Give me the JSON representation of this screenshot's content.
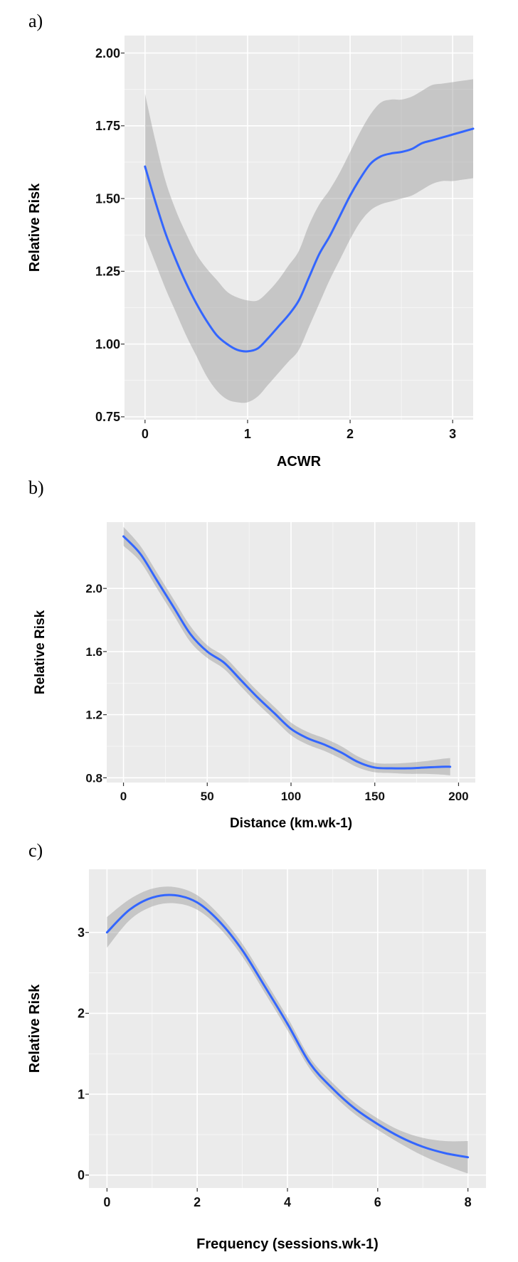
{
  "figure": {
    "panels": [
      {
        "label": "a)"
      },
      {
        "label": "b)"
      },
      {
        "label": "c)"
      }
    ]
  },
  "chart_data": [
    {
      "type": "line",
      "xlabel": "ACWR",
      "ylabel": "Relative Risk",
      "xlim": [
        -0.2,
        3.2
      ],
      "ylim": [
        0.74,
        2.06
      ],
      "x_ticks": [
        0,
        1,
        2,
        3
      ],
      "y_ticks": [
        0.75,
        1.0,
        1.25,
        1.5,
        1.75,
        2.0
      ],
      "y_tick_labels": [
        "0.75",
        "1.00",
        "1.25",
        "1.50",
        "1.75",
        "2.00"
      ],
      "grid": true,
      "series": [
        {
          "x": [
            0,
            0.1,
            0.2,
            0.3,
            0.4,
            0.5,
            0.6,
            0.7,
            0.8,
            0.9,
            1.0,
            1.1,
            1.2,
            1.3,
            1.4,
            1.5,
            1.6,
            1.7,
            1.8,
            1.9,
            2.0,
            2.1,
            2.2,
            2.3,
            2.4,
            2.5,
            2.6,
            2.7,
            2.8,
            2.9,
            3.0,
            3.1,
            3.2
          ],
          "y": [
            1.61,
            1.49,
            1.38,
            1.29,
            1.21,
            1.14,
            1.08,
            1.03,
            1.0,
            0.98,
            0.975,
            0.985,
            1.02,
            1.06,
            1.1,
            1.15,
            1.23,
            1.31,
            1.37,
            1.44,
            1.51,
            1.57,
            1.62,
            1.645,
            1.655,
            1.66,
            1.67,
            1.69,
            1.7,
            1.71,
            1.72,
            1.73,
            1.74
          ],
          "lower": [
            1.37,
            1.28,
            1.19,
            1.11,
            1.03,
            0.96,
            0.89,
            0.84,
            0.81,
            0.8,
            0.8,
            0.82,
            0.86,
            0.9,
            0.94,
            0.98,
            1.06,
            1.14,
            1.22,
            1.29,
            1.36,
            1.42,
            1.46,
            1.48,
            1.49,
            1.5,
            1.51,
            1.53,
            1.55,
            1.56,
            1.56,
            1.565,
            1.57
          ],
          "upper": [
            1.86,
            1.7,
            1.56,
            1.46,
            1.38,
            1.31,
            1.26,
            1.22,
            1.18,
            1.16,
            1.15,
            1.15,
            1.18,
            1.22,
            1.27,
            1.32,
            1.41,
            1.48,
            1.53,
            1.59,
            1.66,
            1.73,
            1.79,
            1.83,
            1.84,
            1.84,
            1.85,
            1.87,
            1.89,
            1.895,
            1.9,
            1.905,
            1.91
          ]
        }
      ]
    },
    {
      "type": "line",
      "xlabel": "Distance (km.wk-1)",
      "ylabel": "Relative Risk",
      "xlim": [
        -10,
        210
      ],
      "ylim": [
        0.77,
        2.42
      ],
      "x_ticks": [
        0,
        50,
        100,
        150,
        200
      ],
      "y_ticks": [
        0.8,
        1.2,
        1.6,
        2.0
      ],
      "y_tick_labels": [
        "0.8",
        "1.2",
        "1.6",
        "2.0"
      ],
      "grid": true,
      "series": [
        {
          "x": [
            0,
            10,
            20,
            30,
            40,
            50,
            60,
            70,
            80,
            90,
            100,
            110,
            120,
            130,
            140,
            150,
            160,
            170,
            180,
            190,
            195
          ],
          "y": [
            2.33,
            2.22,
            2.05,
            1.88,
            1.71,
            1.6,
            1.53,
            1.42,
            1.31,
            1.21,
            1.11,
            1.05,
            1.01,
            0.96,
            0.9,
            0.865,
            0.86,
            0.86,
            0.865,
            0.87,
            0.87
          ],
          "lower": [
            2.27,
            2.17,
            2.0,
            1.83,
            1.66,
            1.56,
            1.49,
            1.38,
            1.27,
            1.17,
            1.07,
            1.01,
            0.97,
            0.92,
            0.865,
            0.835,
            0.83,
            0.825,
            0.825,
            0.82,
            0.815
          ],
          "upper": [
            2.39,
            2.27,
            2.1,
            1.93,
            1.76,
            1.64,
            1.57,
            1.46,
            1.35,
            1.25,
            1.15,
            1.09,
            1.05,
            1.0,
            0.935,
            0.895,
            0.89,
            0.895,
            0.905,
            0.92,
            0.925
          ]
        }
      ]
    },
    {
      "type": "line",
      "xlabel": "Frequency (sessions.wk-1)",
      "ylabel": "Relative Risk",
      "xlim": [
        -0.4,
        8.4
      ],
      "ylim": [
        -0.16,
        3.78
      ],
      "x_ticks": [
        0,
        2,
        4,
        6,
        8
      ],
      "y_ticks": [
        0,
        1,
        2,
        3
      ],
      "y_tick_labels": [
        "0",
        "1",
        "2",
        "3"
      ],
      "grid": true,
      "series": [
        {
          "x": [
            0,
            0.5,
            1.0,
            1.5,
            2.0,
            2.5,
            3.0,
            3.5,
            4.0,
            4.5,
            5.0,
            5.5,
            6.0,
            6.5,
            7.0,
            7.5,
            8.0
          ],
          "y": [
            3.0,
            3.28,
            3.43,
            3.46,
            3.37,
            3.13,
            2.78,
            2.33,
            1.87,
            1.38,
            1.07,
            0.82,
            0.63,
            0.47,
            0.35,
            0.27,
            0.22
          ],
          "lower": [
            2.81,
            3.15,
            3.32,
            3.36,
            3.28,
            3.05,
            2.7,
            2.25,
            1.79,
            1.31,
            1.0,
            0.75,
            0.56,
            0.39,
            0.24,
            0.12,
            0.02
          ],
          "upper": [
            3.19,
            3.41,
            3.54,
            3.56,
            3.46,
            3.21,
            2.86,
            2.41,
            1.95,
            1.45,
            1.14,
            0.89,
            0.7,
            0.55,
            0.46,
            0.42,
            0.42
          ]
        }
      ]
    }
  ],
  "style": {
    "panel_bg": "#ebebeb",
    "grid_color": "#ffffff",
    "line_color": "#3366ff",
    "band_color": "#9a9a9a"
  }
}
